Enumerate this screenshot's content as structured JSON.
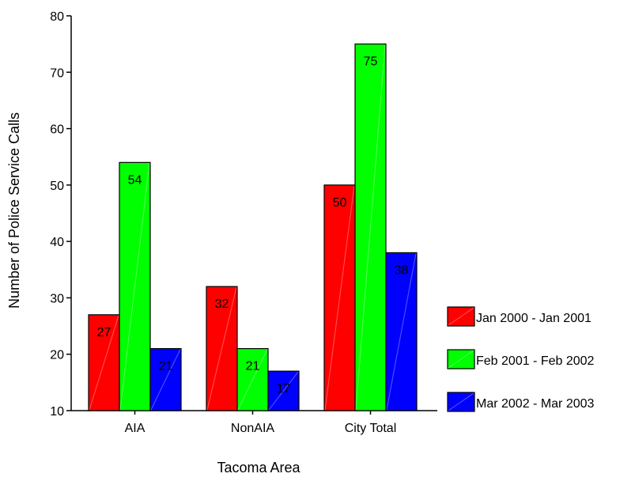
{
  "chart_data": {
    "type": "bar",
    "title": "",
    "xlabel": "Tacoma Area",
    "ylabel": "Number of Police Service Calls",
    "categories": [
      "AIA",
      "NonAIA",
      "City Total"
    ],
    "series": [
      {
        "name": "Jan 2000 - Jan 2001",
        "values": [
          27,
          32,
          50
        ],
        "color": "#ff0000"
      },
      {
        "name": "Feb 2001 - Feb 2002",
        "values": [
          54,
          21,
          75
        ],
        "color": "#00ff00"
      },
      {
        "name": "Mar 2002 - Mar 2003",
        "values": [
          21,
          17,
          38
        ],
        "color": "#0000ff"
      }
    ],
    "ylim": [
      10,
      80
    ],
    "yticks": [
      10,
      20,
      30,
      40,
      50,
      60,
      70,
      80
    ],
    "legend_position": "right",
    "grid": false
  }
}
